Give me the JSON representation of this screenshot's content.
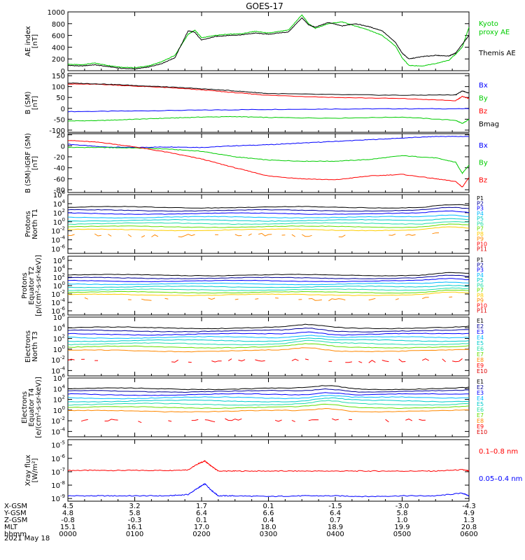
{
  "title": "GOES-17",
  "colors": {
    "black": "#000000",
    "green": "#00cc00",
    "red": "#ff0000",
    "blue": "#0000ff",
    "navy": "#000099",
    "cyan": "#00bbff",
    "teal": "#00cccc",
    "aqua": "#22ddaa",
    "lime": "#66dd00",
    "yellow": "#ffcc00",
    "orange": "#ff8800",
    "crimson": "#dd0000"
  },
  "chart_data": [
    {
      "id": "ae",
      "type": "line",
      "ylabel": [
        "AE index",
        "[nT]"
      ],
      "ylim": [
        0,
        1000
      ],
      "yticks": [
        0,
        200,
        400,
        600,
        800,
        1000
      ],
      "scale": "linear",
      "legend": [
        {
          "label": "Kyoto",
          "color": "#00cc00"
        },
        {
          "label": "proxy AE",
          "color": "#00cc00"
        },
        {
          "label": "Themis AE",
          "color": "#000000"
        }
      ],
      "series": [
        {
          "name": "Kyoto proxy AE",
          "color": "#00cc00",
          "x": [
            0,
            0.2,
            0.4,
            0.6,
            0.8,
            1.0,
            1.2,
            1.4,
            1.6,
            1.8,
            1.9,
            2.0,
            2.2,
            2.4,
            2.6,
            2.8,
            3.0,
            3.3,
            3.5,
            3.6,
            3.7,
            3.9,
            4.1,
            4.3,
            4.5,
            4.7,
            4.9,
            5.0,
            5.1,
            5.3,
            5.5,
            5.7,
            5.8,
            5.9,
            6.0
          ],
          "y": [
            110,
            100,
            130,
            90,
            60,
            50,
            80,
            150,
            260,
            620,
            690,
            560,
            600,
            620,
            630,
            670,
            640,
            690,
            950,
            800,
            720,
            800,
            830,
            760,
            690,
            600,
            420,
            220,
            90,
            80,
            120,
            180,
            280,
            400,
            740
          ]
        },
        {
          "name": "Themis AE",
          "color": "#000000",
          "x": [
            0,
            0.2,
            0.4,
            0.6,
            0.8,
            1.0,
            1.2,
            1.4,
            1.6,
            1.8,
            1.9,
            2.0,
            2.2,
            2.4,
            2.6,
            2.8,
            3.0,
            3.3,
            3.5,
            3.6,
            3.7,
            3.9,
            4.1,
            4.3,
            4.5,
            4.7,
            4.9,
            5.0,
            5.1,
            5.3,
            5.5,
            5.7,
            5.8,
            5.9,
            6.0
          ],
          "y": [
            90,
            80,
            100,
            70,
            40,
            30,
            60,
            120,
            220,
            680,
            650,
            520,
            580,
            600,
            610,
            640,
            620,
            660,
            900,
            780,
            740,
            820,
            760,
            800,
            750,
            680,
            480,
            300,
            200,
            240,
            260,
            250,
            300,
            450,
            600
          ]
        }
      ]
    },
    {
      "id": "bsm",
      "type": "line",
      "ylabel": [
        "B (SM)",
        "[nT]"
      ],
      "ylim": [
        -110,
        160
      ],
      "yticks": [
        -100,
        -50,
        0,
        50,
        100,
        150
      ],
      "scale": "linear",
      "legend": [
        {
          "label": "Bx",
          "color": "#0000ff"
        },
        {
          "label": "By",
          "color": "#00cc00"
        },
        {
          "label": "Bz",
          "color": "#ff0000"
        },
        {
          "label": "Bmag",
          "color": "#000000"
        }
      ],
      "series": [
        {
          "name": "Bx",
          "color": "#0000ff",
          "x": [
            0,
            1,
            2,
            3,
            4,
            5,
            6
          ],
          "y": [
            -15,
            -12,
            -8,
            -5,
            -3,
            -2,
            -2
          ]
        },
        {
          "name": "By",
          "color": "#00cc00",
          "x": [
            0,
            0.5,
            1,
            1.5,
            2,
            2.5,
            3,
            4,
            5,
            5.8,
            5.9,
            6
          ],
          "y": [
            -58,
            -56,
            -50,
            -45,
            -40,
            -38,
            -42,
            -45,
            -40,
            -55,
            -70,
            -50
          ]
        },
        {
          "name": "Bz",
          "color": "#ff0000",
          "x": [
            0,
            0.5,
            1,
            1.5,
            2,
            2.5,
            3,
            4,
            5,
            5.8,
            5.9,
            6
          ],
          "y": [
            112,
            110,
            102,
            95,
            85,
            72,
            60,
            50,
            45,
            35,
            55,
            45
          ]
        },
        {
          "name": "Bmag",
          "color": "#000000",
          "x": [
            0,
            0.5,
            1,
            1.5,
            2,
            2.5,
            3,
            4,
            5,
            5.8,
            5.9,
            6
          ],
          "y": [
            116,
            112,
            105,
            98,
            90,
            80,
            68,
            63,
            60,
            62,
            80,
            70
          ]
        }
      ]
    },
    {
      "id": "bres",
      "type": "line",
      "ylabel": [
        "B (SM)-IGRF (SM)",
        "[nT]"
      ],
      "ylim": [
        -85,
        22
      ],
      "yticks": [
        -80,
        -60,
        -40,
        -20,
        0,
        20
      ],
      "scale": "linear",
      "legend": [
        {
          "label": "Bx",
          "color": "#0000ff"
        },
        {
          "label": "By",
          "color": "#00cc00"
        },
        {
          "label": "Bz",
          "color": "#ff0000"
        }
      ],
      "series": [
        {
          "name": "Bx",
          "color": "#0000ff",
          "x": [
            0,
            0.5,
            1,
            1.5,
            2,
            2.5,
            3,
            3.5,
            4,
            4.5,
            5,
            5.5,
            6
          ],
          "y": [
            3,
            -2,
            -3,
            -2,
            -3,
            0,
            2,
            5,
            8,
            11,
            14,
            17,
            17
          ]
        },
        {
          "name": "By",
          "color": "#00cc00",
          "x": [
            0,
            0.5,
            1,
            1.5,
            2,
            2.5,
            3,
            3.5,
            4,
            4.5,
            5,
            5.5,
            5.8,
            5.9,
            6
          ],
          "y": [
            -3,
            -3,
            -4,
            -6,
            -10,
            -20,
            -26,
            -28,
            -28,
            -25,
            -18,
            -22,
            -30,
            -50,
            -35
          ]
        },
        {
          "name": "Bz",
          "color": "#ff0000",
          "x": [
            0,
            0.5,
            1,
            1.5,
            2,
            2.5,
            3,
            3.5,
            4,
            4.5,
            5,
            5.5,
            5.8,
            5.9,
            6
          ],
          "y": [
            10,
            6,
            -2,
            -12,
            -24,
            -40,
            -55,
            -60,
            -62,
            -55,
            -52,
            -60,
            -65,
            -75,
            -58
          ]
        }
      ]
    },
    {
      "id": "pn",
      "type": "line",
      "scale": "log",
      "ylabel": [
        "Protons",
        "North T1"
      ],
      "ylim": [
        -7,
        6
      ],
      "yticks": [
        -6,
        -4,
        -2,
        0,
        2,
        4,
        6
      ],
      "legend": [
        {
          "label": "P1",
          "color": "#000000"
        },
        {
          "label": "P2",
          "color": "#000099"
        },
        {
          "label": "P3",
          "color": "#0000ff"
        },
        {
          "label": "P4",
          "color": "#00bbff"
        },
        {
          "label": "P5",
          "color": "#00cccc"
        },
        {
          "label": "P6",
          "color": "#22ddaa"
        },
        {
          "label": "P7",
          "color": "#66dd00"
        },
        {
          "label": "P8",
          "color": "#ffcc00"
        },
        {
          "label": "P9",
          "color": "#ff8800"
        },
        {
          "label": "P10",
          "color": "#ff0000"
        },
        {
          "label": "P11",
          "color": "#dd0000"
        }
      ],
      "bases": [
        3.2,
        2.5,
        1.8,
        1.0,
        0.3,
        -0.4,
        -1.1,
        -1.8,
        -3.0
      ],
      "bump_hour": 5.7
    },
    {
      "id": "pe",
      "type": "line",
      "scale": "log",
      "ylabel": [
        "Protons",
        "Equator T2",
        "[p/(cm²-s-sr-keV)]"
      ],
      "ylim": [
        -7,
        7
      ],
      "yticks": [
        -6,
        -4,
        -2,
        0,
        2,
        4,
        6
      ],
      "legend": [
        {
          "label": "P1",
          "color": "#000000"
        },
        {
          "label": "P2",
          "color": "#000099"
        },
        {
          "label": "P3",
          "color": "#0000ff"
        },
        {
          "label": "P4",
          "color": "#00bbff"
        },
        {
          "label": "P5",
          "color": "#00cccc"
        },
        {
          "label": "P6",
          "color": "#22ddaa"
        },
        {
          "label": "P7",
          "color": "#66dd00"
        },
        {
          "label": "P8",
          "color": "#ffcc00"
        },
        {
          "label": "P9",
          "color": "#ff8800"
        },
        {
          "label": "P10",
          "color": "#ff0000"
        },
        {
          "label": "P11",
          "color": "#dd0000"
        }
      ],
      "bases": [
        2.5,
        1.8,
        1.1,
        0.4,
        -0.3,
        -1.0,
        -1.6,
        -2.2,
        -3.2
      ],
      "bump_hour": 5.7
    },
    {
      "id": "en",
      "type": "line",
      "scale": "log",
      "ylabel": [
        "Electrons",
        "North T3"
      ],
      "ylim": [
        -5,
        6
      ],
      "yticks": [
        -4,
        -2,
        0,
        2,
        4,
        6
      ],
      "legend": [
        {
          "label": "E1",
          "color": "#000000"
        },
        {
          "label": "E2",
          "color": "#000099"
        },
        {
          "label": "E3",
          "color": "#0000ff"
        },
        {
          "label": "E4",
          "color": "#00bbff"
        },
        {
          "label": "E5",
          "color": "#00cccc"
        },
        {
          "label": "E6",
          "color": "#22ddaa"
        },
        {
          "label": "E7",
          "color": "#66dd00"
        },
        {
          "label": "E8",
          "color": "#ff8800"
        },
        {
          "label": "E9",
          "color": "#ff0000"
        },
        {
          "label": "E10",
          "color": "#dd0000"
        }
      ],
      "bases": [
        4.0,
        3.4,
        2.8,
        2.2,
        1.6,
        1.0,
        0.4,
        -0.3,
        -2.2
      ],
      "bump_hour": 3.6
    },
    {
      "id": "ee",
      "type": "line",
      "scale": "log",
      "ylabel": [
        "Electrons",
        "Equator T4",
        "[e/(cm²-s-sr-keV)]"
      ],
      "ylim": [
        -5,
        6
      ],
      "yticks": [
        -4,
        -2,
        0,
        2,
        4,
        6
      ],
      "legend": [
        {
          "label": "E1",
          "color": "#000000"
        },
        {
          "label": "E2",
          "color": "#000099"
        },
        {
          "label": "E3",
          "color": "#0000ff"
        },
        {
          "label": "E4",
          "color": "#00bbff"
        },
        {
          "label": "E5",
          "color": "#00cccc"
        },
        {
          "label": "E6",
          "color": "#22ddaa"
        },
        {
          "label": "E7",
          "color": "#66dd00"
        },
        {
          "label": "E8",
          "color": "#ff8800"
        },
        {
          "label": "E9",
          "color": "#ff0000"
        },
        {
          "label": "E10",
          "color": "#dd0000"
        }
      ],
      "bases": [
        4.0,
        3.5,
        2.9,
        2.3,
        1.7,
        1.1,
        0.5,
        -0.2,
        -2.0
      ],
      "bump_hour": 3.9
    },
    {
      "id": "xray",
      "type": "line",
      "scale": "log",
      "ylabel": [
        "Xray flux",
        "[W/m²]"
      ],
      "ylim": [
        -9.2,
        -4.6
      ],
      "yticks": [
        -9,
        -8,
        -7,
        -6,
        -5
      ],
      "legend": [
        {
          "label": "0.1–0.8 nm",
          "color": "#ff0000"
        },
        {
          "label": "0.05–0.4 nm",
          "color": "#0000ff"
        }
      ],
      "series": [
        {
          "name": "0.1–0.8 nm",
          "color": "#ff0000",
          "x": [
            0,
            0.5,
            1,
            1.5,
            1.8,
            1.95,
            2.05,
            2.15,
            2.25,
            2.5,
            3,
            3.5,
            4,
            4.5,
            5,
            5.5,
            5.9,
            6
          ],
          "y": [
            -6.9,
            -6.9,
            -6.9,
            -6.9,
            -6.85,
            -6.4,
            -6.2,
            -6.6,
            -6.95,
            -6.95,
            -6.95,
            -6.95,
            -6.95,
            -6.95,
            -6.95,
            -6.95,
            -6.85,
            -6.95
          ]
        },
        {
          "name": "0.05–0.4 nm",
          "color": "#0000ff",
          "x": [
            0,
            0.5,
            1,
            1.5,
            1.8,
            1.95,
            2.05,
            2.15,
            2.25,
            2.5,
            3,
            3.5,
            4,
            4.5,
            5,
            5.5,
            5.9,
            6
          ],
          "y": [
            -8.8,
            -8.8,
            -8.8,
            -8.8,
            -8.7,
            -8.2,
            -7.9,
            -8.4,
            -8.8,
            -8.8,
            -8.85,
            -8.8,
            -8.8,
            -8.85,
            -8.8,
            -8.8,
            -8.6,
            -8.8
          ]
        }
      ]
    }
  ],
  "bottom": {
    "labels": [
      "X-GSM",
      "Y-GSM",
      "Z-GSM",
      "MLT",
      "hhmm"
    ],
    "rows": [
      [
        "4.5",
        "3.2",
        "1.7",
        "0.1",
        "-1.5",
        "-3.0",
        "-4.3"
      ],
      [
        "4.8",
        "5.8",
        "6.4",
        "6.6",
        "6.4",
        "5.8",
        "4.9"
      ],
      [
        "-0.8",
        "-0.3",
        "0.1",
        "0.4",
        "0.7",
        "1.0",
        "1.3"
      ],
      [
        "15.1",
        "16.1",
        "17.0",
        "18.0",
        "18.9",
        "19.9",
        "20.8"
      ],
      [
        "0000",
        "0100",
        "0200",
        "0300",
        "0400",
        "0500",
        "0600"
      ]
    ],
    "date": "2021 May 18"
  }
}
